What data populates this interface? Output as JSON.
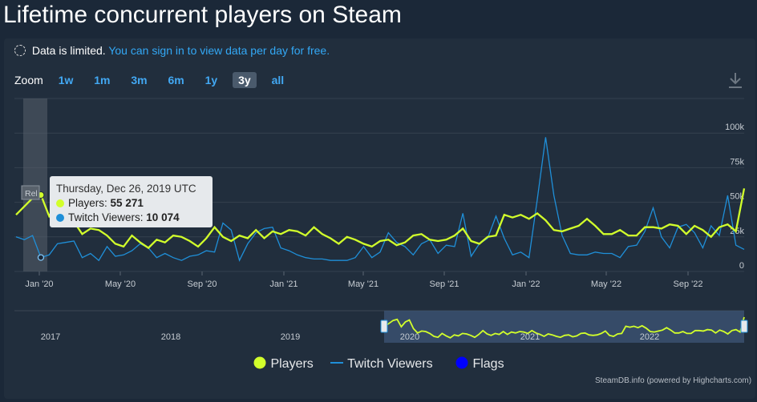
{
  "page": {
    "title": "Lifetime concurrent players on Steam"
  },
  "notice": {
    "text": "Data is limited.",
    "link": "You can sign in to view data per day for free."
  },
  "zoom": {
    "label": "Zoom",
    "options": [
      "1w",
      "1m",
      "3m",
      "6m",
      "1y",
      "3y",
      "all"
    ],
    "active": "3y"
  },
  "icons": {
    "download": "download-icon",
    "notice": "dashed-circle-icon"
  },
  "colors": {
    "players": "#d2ff2b",
    "twitch": "#1f8fd8",
    "flags": "#0000ff",
    "background": "#1b2838",
    "panel": "#212e3d"
  },
  "tooltip": {
    "date": "Thursday, Dec 26, 2019 UTC",
    "players_label": "Players:",
    "players_value": "55 271",
    "twitch_label": "Twitch Viewers:",
    "twitch_value": "10 074"
  },
  "flag_label": "Rel",
  "legend": {
    "players": "Players",
    "twitch": "Twitch Viewers",
    "flags": "Flags"
  },
  "credits": "SteamDB.info (powered by Highcharts.com)",
  "chart_data": {
    "type": "line",
    "title": "Lifetime concurrent players on Steam",
    "x_tick_labels": [
      "Jan '20",
      "May '20",
      "Sep '20",
      "Jan '21",
      "May '21",
      "Sep '21",
      "Jan '22",
      "May '22",
      "Sep '22"
    ],
    "y_tick_labels": [
      "0",
      "25k",
      "50k",
      "75k",
      "100k"
    ],
    "ylim": [
      0,
      125000
    ],
    "navigator_labels": [
      "2017",
      "2018",
      "2019",
      "2020",
      "2021",
      "2022"
    ],
    "series": [
      {
        "name": "Players",
        "values": [
          41000,
          47000,
          53000,
          55271,
          40000,
          50000,
          54000,
          36000,
          27000,
          31000,
          30000,
          26000,
          20000,
          18000,
          26000,
          21000,
          17000,
          23000,
          21000,
          26000,
          25000,
          22000,
          18000,
          24000,
          32000,
          25000,
          22000,
          26000,
          24000,
          30000,
          24000,
          29000,
          27000,
          30000,
          29000,
          26000,
          32000,
          27000,
          24000,
          20000,
          25000,
          23000,
          20000,
          18000,
          22000,
          23000,
          19000,
          21000,
          26000,
          27000,
          23000,
          22000,
          23000,
          26000,
          31000,
          22000,
          20000,
          25000,
          26000,
          41000,
          39000,
          41000,
          38000,
          42000,
          37000,
          30000,
          29000,
          31000,
          33000,
          38000,
          33000,
          27000,
          27000,
          30000,
          26000,
          26000,
          32000,
          32000,
          31000,
          34000,
          33000,
          27000,
          33000,
          30000,
          25000,
          32000,
          34000,
          29000,
          60000
        ],
        "color": "#d2ff2b"
      },
      {
        "name": "Twitch Viewers",
        "values": [
          25000,
          23000,
          26000,
          10074,
          12000,
          20000,
          21000,
          22000,
          10000,
          13000,
          8000,
          18000,
          11000,
          12000,
          15000,
          20000,
          17000,
          10000,
          13000,
          10000,
          8000,
          11000,
          12000,
          15000,
          14000,
          35000,
          30000,
          8000,
          20000,
          28000,
          31000,
          32000,
          17000,
          15000,
          12000,
          10000,
          9000,
          9000,
          8000,
          8000,
          8000,
          10000,
          18000,
          10000,
          14000,
          28000,
          21000,
          18000,
          12000,
          20000,
          23000,
          13000,
          19000,
          18000,
          42000,
          11000,
          20000,
          24000,
          40000,
          24000,
          12000,
          14000,
          10000,
          52000,
          97000,
          55000,
          26000,
          13000,
          12000,
          12000,
          14000,
          13000,
          13000,
          10000,
          18000,
          19000,
          29000,
          46000,
          25000,
          17000,
          32000,
          34000,
          28000,
          17000,
          33000,
          26000,
          55000,
          19000,
          16000
        ],
        "color": "#1f8fd8"
      }
    ],
    "flags": [
      {
        "label": "Rel",
        "x_index": 3
      }
    ],
    "grid": true,
    "legend_position": "bottom-center",
    "selection_range": [
      "Dec '19",
      "Dec '22"
    ]
  }
}
